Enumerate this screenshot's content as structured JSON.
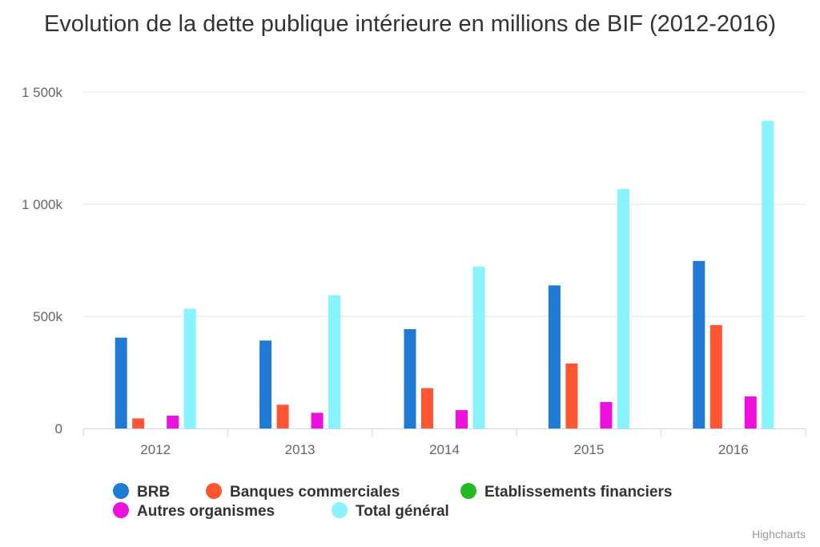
{
  "chart_data": {
    "type": "bar",
    "title": "Evolution de la dette publique intérieure en millions de BIF (2012-2016)",
    "categories": [
      "2012",
      "2013",
      "2014",
      "2015",
      "2016"
    ],
    "series": [
      {
        "name": "BRB",
        "color": "#1f7ad6",
        "values": [
          405000,
          392000,
          443000,
          638000,
          747000
        ]
      },
      {
        "name": "Banques commerciales",
        "color": "#ff5533",
        "values": [
          45000,
          106000,
          180000,
          290000,
          461000
        ]
      },
      {
        "name": "Etablissements financiers",
        "color": "#22bb22",
        "values": [
          0,
          0,
          0,
          0,
          0
        ]
      },
      {
        "name": "Autres organismes",
        "color": "#ee11dd",
        "values": [
          57000,
          70000,
          82000,
          118000,
          143000
        ]
      },
      {
        "name": "Total général",
        "color": "#88f4ff",
        "values": [
          534000,
          594000,
          722000,
          1068000,
          1372000
        ]
      }
    ],
    "ylim": [
      0,
      1500000
    ],
    "yticks": [
      {
        "value": 0,
        "label": "0"
      },
      {
        "value": 500000,
        "label": "500k"
      },
      {
        "value": 1000000,
        "label": "1 000k"
      },
      {
        "value": 1500000,
        "label": "1 500k"
      }
    ],
    "grid": true,
    "legend_position": "bottom-left",
    "credits": "Highcharts"
  }
}
